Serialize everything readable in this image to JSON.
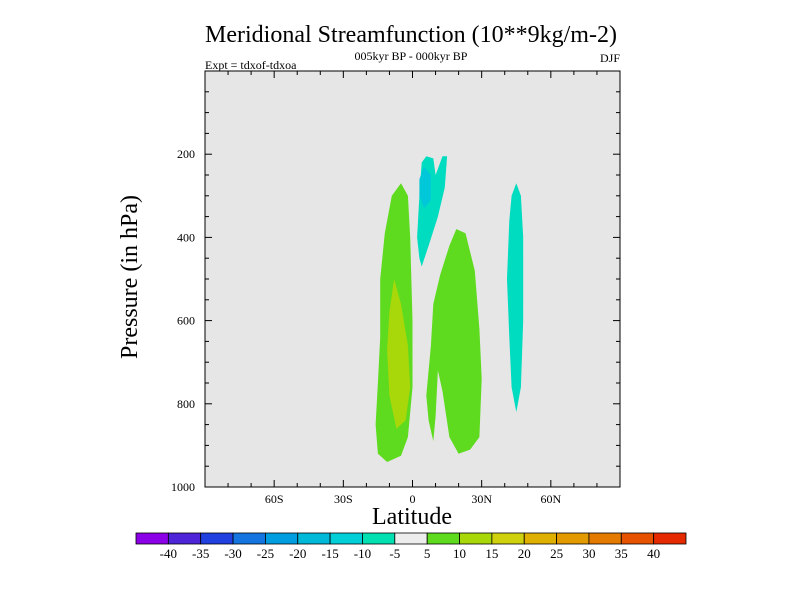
{
  "chart_data": {
    "type": "contour",
    "title": "Meridional Streamfunction (10**9kg/m-2)",
    "subtitle": "005kyr BP - 000kyr BP",
    "experiment": "Expt = tdxof-tdxoa",
    "season": "DJF",
    "xlabel": "Latitude",
    "ylabel": "Pressure (in hPa)",
    "xlim": [
      -90,
      90
    ],
    "ylim": [
      1000,
      0
    ],
    "x_ticks": [
      {
        "value": -60,
        "label": "60S"
      },
      {
        "value": -30,
        "label": "30S"
      },
      {
        "value": 0,
        "label": "0"
      },
      {
        "value": 30,
        "label": "30N"
      },
      {
        "value": 60,
        "label": "60N"
      }
    ],
    "y_ticks": [
      {
        "value": 200,
        "label": "200"
      },
      {
        "value": 400,
        "label": "400"
      },
      {
        "value": 600,
        "label": "600"
      },
      {
        "value": 800,
        "label": "800"
      },
      {
        "value": 1000,
        "label": "1000"
      }
    ],
    "background_color": "#e6e6e6",
    "regions": [
      {
        "level": 5,
        "color": "#5edb1e",
        "points": [
          [
            -14,
            640
          ],
          [
            -14,
            500
          ],
          [
            -12,
            390
          ],
          [
            -9,
            300
          ],
          [
            -5,
            270
          ],
          [
            -2,
            300
          ],
          [
            -1,
            400
          ],
          [
            0,
            600
          ],
          [
            0,
            760
          ],
          [
            -2,
            880
          ],
          [
            -5,
            925
          ],
          [
            -11,
            940
          ],
          [
            -15,
            920
          ],
          [
            -16,
            850
          ],
          [
            -15,
            750
          ]
        ]
      },
      {
        "level": 10,
        "color": "#a8d80a",
        "points": [
          [
            -11,
            670
          ],
          [
            -10,
            580
          ],
          [
            -8,
            500
          ],
          [
            -5,
            560
          ],
          [
            -2,
            660
          ],
          [
            -1,
            760
          ],
          [
            -3,
            840
          ],
          [
            -7,
            860
          ],
          [
            -10,
            780
          ]
        ]
      },
      {
        "level": 5,
        "color": "#5edb1e",
        "points": [
          [
            6,
            780
          ],
          [
            8,
            660
          ],
          [
            9,
            560
          ],
          [
            12,
            490
          ],
          [
            16,
            420
          ],
          [
            19,
            380
          ],
          [
            23,
            390
          ],
          [
            27,
            480
          ],
          [
            29,
            620
          ],
          [
            30,
            740
          ],
          [
            29,
            880
          ],
          [
            25,
            910
          ],
          [
            20,
            920
          ],
          [
            16,
            880
          ],
          [
            13,
            770
          ],
          [
            11,
            720
          ],
          [
            10,
            830
          ],
          [
            9,
            890
          ],
          [
            7,
            840
          ]
        ]
      },
      {
        "level": -5,
        "color": "#00dcc0",
        "points": [
          [
            2,
            400
          ],
          [
            3,
            300
          ],
          [
            4,
            220
          ],
          [
            6,
            205
          ],
          [
            9,
            210
          ],
          [
            10,
            250
          ],
          [
            13,
            205
          ],
          [
            15,
            205
          ],
          [
            14,
            280
          ],
          [
            11,
            350
          ],
          [
            7,
            420
          ],
          [
            4,
            470
          ],
          [
            3,
            450
          ]
        ]
      },
      {
        "level": -10,
        "color": "#00c8d8",
        "points": [
          [
            3,
            260
          ],
          [
            5,
            230
          ],
          [
            8,
            250
          ],
          [
            8,
            310
          ],
          [
            5,
            330
          ],
          [
            3,
            300
          ]
        ]
      },
      {
        "level": -5,
        "color": "#00dcc0",
        "points": [
          [
            41,
            500
          ],
          [
            42,
            360
          ],
          [
            43,
            300
          ],
          [
            45,
            270
          ],
          [
            47,
            300
          ],
          [
            48,
            400
          ],
          [
            48,
            600
          ],
          [
            47,
            760
          ],
          [
            45,
            820
          ],
          [
            43,
            760
          ],
          [
            42,
            640
          ]
        ]
      }
    ],
    "legend": {
      "colors": [
        "#8b00e6",
        "#4d24d8",
        "#2040e0",
        "#1474e0",
        "#009ee0",
        "#00b8d8",
        "#00cfd8",
        "#00e0b0",
        "#ededed",
        "#5edb1e",
        "#a8d80a",
        "#cfd10c",
        "#e0b000",
        "#e29a00",
        "#e47a00",
        "#e65200",
        "#e62a00"
      ],
      "labels": [
        "-40",
        "-35",
        "-30",
        "-25",
        "-20",
        "-15",
        "-10",
        "-5",
        "5",
        "10",
        "15",
        "20",
        "25",
        "30",
        "35",
        "40"
      ]
    }
  }
}
